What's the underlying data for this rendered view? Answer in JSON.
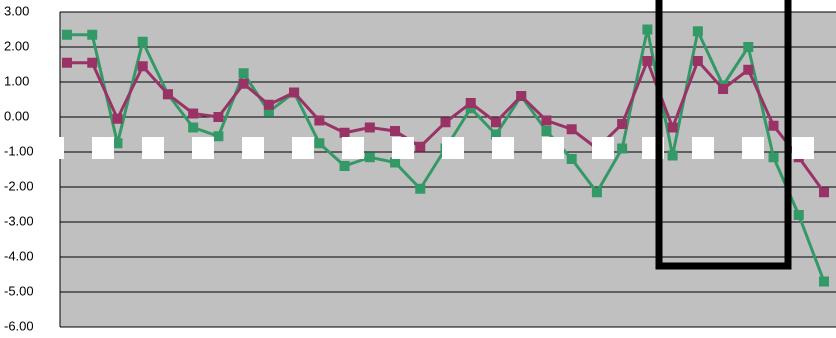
{
  "chart_data": {
    "type": "line",
    "categories": [
      null,
      null,
      null,
      null,
      null,
      null,
      null,
      null,
      null,
      null,
      null,
      null,
      null,
      null,
      null,
      null,
      null,
      null,
      null,
      null,
      null,
      null,
      null,
      null,
      null,
      null,
      null,
      null,
      null,
      null,
      null
    ],
    "series": [
      {
        "color": "#339966",
        "values": [
          2.35,
          2.35,
          -0.75,
          2.15,
          0.65,
          -0.3,
          -0.55,
          1.25,
          0.15,
          0.7,
          -0.75,
          -1.4,
          -1.15,
          -1.3,
          -2.05,
          -0.9,
          0.25,
          -0.5,
          0.6,
          -0.4,
          -1.2,
          -2.15,
          -0.9,
          2.5,
          -1.1,
          2.45,
          0.9,
          2.0,
          -1.15,
          -2.8,
          -4.7
        ]
      },
      {
        "color": "#993366",
        "values": [
          1.55,
          1.55,
          -0.05,
          1.45,
          0.65,
          0.1,
          0.0,
          0.95,
          0.35,
          0.7,
          -0.1,
          -0.45,
          -0.3,
          -0.4,
          -0.85,
          -0.15,
          0.4,
          -0.15,
          0.6,
          -0.1,
          -0.35,
          -0.9,
          -0.2,
          1.6,
          -0.3,
          1.6,
          0.8,
          1.35,
          -0.25,
          -1.15,
          -2.15
        ]
      }
    ],
    "ylim": [
      -6,
      3
    ],
    "yticks": [
      {
        "value": -6,
        "label": "-6.00"
      },
      {
        "value": -5,
        "label": "-5.00"
      },
      {
        "value": -4,
        "label": "-4.00"
      },
      {
        "value": -3,
        "label": "-3.00"
      },
      {
        "value": -2,
        "label": "-2.00"
      },
      {
        "value": -1,
        "label": "-1.00"
      },
      {
        "value": 0,
        "label": "0.00"
      },
      {
        "value": 1,
        "label": "1.00"
      },
      {
        "value": 2,
        "label": "2.00"
      },
      {
        "value": 3,
        "label": "3.00"
      }
    ],
    "grid": true
  }
}
